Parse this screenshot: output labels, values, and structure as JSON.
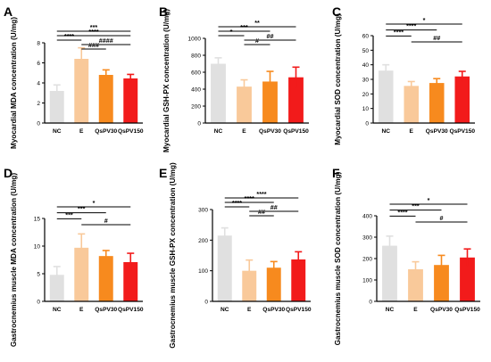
{
  "colors": {
    "NC": "#e0e0e0",
    "E": "#f9c99a",
    "QsPV30": "#f78a1e",
    "QsPV150": "#f21b1b",
    "axis": "#000000"
  },
  "chart_data": [
    {
      "panel": "A",
      "type": "bar",
      "categories": [
        "NC",
        "E",
        "QsPV30",
        "QsPV150"
      ],
      "values": [
        3.2,
        6.4,
        4.8,
        4.45
      ],
      "errors": [
        0.6,
        1.1,
        0.5,
        0.4
      ],
      "ylabel": "Myocardial MDA concentration (U/mg)",
      "ylim": [
        0,
        8
      ],
      "yticks": [
        0,
        2,
        4,
        6,
        8
      ],
      "significance": [
        {
          "from": 0,
          "to": 3,
          "label": "***"
        },
        {
          "from": 0,
          "to": 3,
          "label": "****"
        },
        {
          "from": 0,
          "to": 1,
          "label": "****"
        },
        {
          "from": 1,
          "to": 3,
          "label": "####"
        },
        {
          "from": 1,
          "to": 2,
          "label": "###"
        }
      ]
    },
    {
      "panel": "B",
      "type": "bar",
      "categories": [
        "NC",
        "E",
        "QsPV30",
        "QsPV150"
      ],
      "values": [
        700,
        430,
        490,
        540
      ],
      "errors": [
        70,
        80,
        120,
        120
      ],
      "ylabel": "Myocardial GSH-PX concentration (U/mg)",
      "ylim": [
        0,
        1000
      ],
      "yticks": [
        0,
        200,
        400,
        600,
        800,
        1000
      ],
      "significance": [
        {
          "from": 0,
          "to": 3,
          "label": "**"
        },
        {
          "from": 0,
          "to": 2,
          "label": "***"
        },
        {
          "from": 0,
          "to": 1,
          "label": "*"
        },
        {
          "from": 1,
          "to": 3,
          "label": "##"
        },
        {
          "from": 1,
          "to": 2,
          "label": "#"
        }
      ]
    },
    {
      "panel": "C",
      "type": "bar",
      "categories": [
        "NC",
        "E",
        "QsPV30",
        "QsPV150"
      ],
      "values": [
        36,
        25.5,
        27.5,
        32
      ],
      "errors": [
        4,
        3,
        3,
        3.5
      ],
      "ylabel": "Myocardial SOD concentration (U/mg)",
      "ylim": [
        0,
        60
      ],
      "yticks": [
        0,
        10,
        20,
        30,
        40,
        50,
        60
      ],
      "significance": [
        {
          "from": 0,
          "to": 3,
          "label": "*"
        },
        {
          "from": 0,
          "to": 2,
          "label": "****"
        },
        {
          "from": 0,
          "to": 1,
          "label": "****"
        },
        {
          "from": 1,
          "to": 3,
          "label": "##"
        }
      ]
    },
    {
      "panel": "D",
      "type": "bar",
      "categories": [
        "NC",
        "E",
        "QsPV30",
        "QsPV150"
      ],
      "values": [
        4.8,
        9.7,
        8.2,
        7.1
      ],
      "errors": [
        1.5,
        2.5,
        1.0,
        1.6
      ],
      "ylabel": "Gastrocnemius muscle MDA concentration (U/mg)",
      "ylim": [
        0,
        15
      ],
      "yticks": [
        0,
        5,
        10,
        15
      ],
      "significance": [
        {
          "from": 0,
          "to": 3,
          "label": "*"
        },
        {
          "from": 0,
          "to": 2,
          "label": "***"
        },
        {
          "from": 0,
          "to": 1,
          "label": "***"
        },
        {
          "from": 1,
          "to": 3,
          "label": "#"
        }
      ]
    },
    {
      "panel": "E",
      "type": "bar",
      "categories": [
        "NC",
        "E",
        "QsPV30",
        "QsPV150"
      ],
      "values": [
        215,
        100,
        110,
        137
      ],
      "errors": [
        25,
        35,
        20,
        25
      ],
      "ylabel": "Gastrocnemius muscle GSH-PX concentration (U/mg)",
      "ylim": [
        0,
        300
      ],
      "yticks": [
        0,
        100,
        200,
        300
      ],
      "significance": [
        {
          "from": 0,
          "to": 3,
          "label": "****"
        },
        {
          "from": 0,
          "to": 2,
          "label": "****"
        },
        {
          "from": 0,
          "to": 1,
          "label": "****"
        },
        {
          "from": 1,
          "to": 3,
          "label": "##"
        },
        {
          "from": 1,
          "to": 2,
          "label": "##"
        }
      ]
    },
    {
      "panel": "F",
      "type": "bar",
      "categories": [
        "NC",
        "E",
        "QsPV30",
        "QsPV150"
      ],
      "values": [
        260,
        150,
        170,
        205
      ],
      "errors": [
        45,
        35,
        45,
        40
      ],
      "ylabel": "Gastrocnemius muscle SOD concentration (U/mg)",
      "ylim": [
        0,
        400
      ],
      "yticks": [
        0,
        100,
        200,
        300,
        400
      ],
      "significance": [
        {
          "from": 0,
          "to": 3,
          "label": "*"
        },
        {
          "from": 0,
          "to": 2,
          "label": "***"
        },
        {
          "from": 0,
          "to": 1,
          "label": "****"
        },
        {
          "from": 1,
          "to": 3,
          "label": "#"
        }
      ]
    }
  ]
}
